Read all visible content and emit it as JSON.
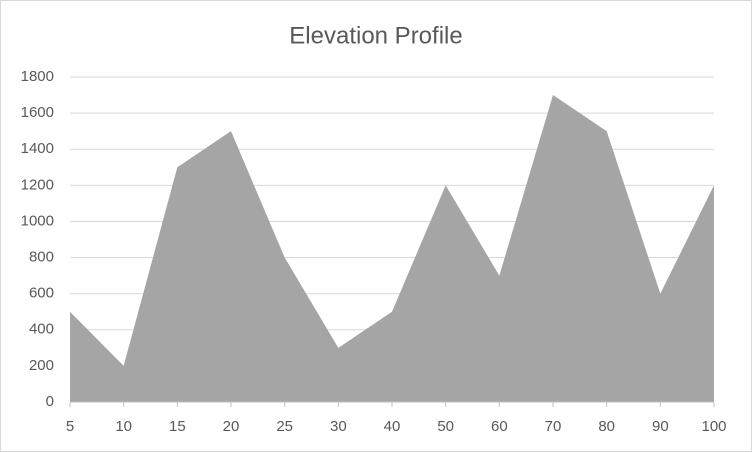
{
  "chart_data": {
    "type": "area",
    "title": "Elevation Profile",
    "categories": [
      "5",
      "10",
      "15",
      "20",
      "25",
      "30",
      "40",
      "50",
      "60",
      "70",
      "80",
      "90",
      "100"
    ],
    "values": [
      500,
      200,
      1300,
      1500,
      800,
      300,
      500,
      1200,
      700,
      1700,
      1500,
      600,
      1200
    ],
    "color": "#a5a5a5",
    "ylim": [
      0,
      1800
    ],
    "yticks": [
      0,
      200,
      400,
      600,
      800,
      1000,
      1200,
      1400,
      1600,
      1800
    ],
    "grid": true
  }
}
